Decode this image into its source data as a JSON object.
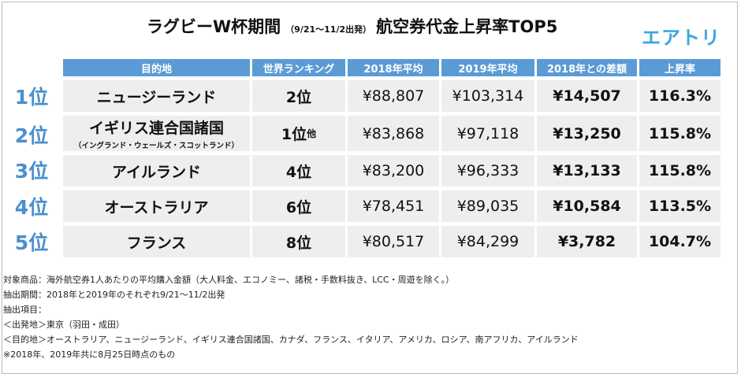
{
  "title": {
    "main": "ラグビーW杯期間",
    "period": "（9/21～11/2出発）",
    "rest": "航空券代金上昇率TOP5"
  },
  "logo": "エアトリ",
  "headers": [
    "目的地",
    "世界ランキング",
    "2018年平均",
    "2019年平均",
    "2018年との差額",
    "上昇率"
  ],
  "rows": [
    {
      "rank": "1位",
      "destination": "ニュージーランド",
      "sub": "",
      "world_rank": "2位",
      "world_rank_suffix": "",
      "avg2018": "¥88,807",
      "avg2019": "¥103,314",
      "diff": "¥14,507",
      "rate": "116.3%"
    },
    {
      "rank": "2位",
      "destination": "イギリス連合国諸国",
      "sub": "（イングランド・ウェールズ・スコットランド）",
      "world_rank": "1位",
      "world_rank_suffix": "他",
      "avg2018": "¥83,868",
      "avg2019": "¥97,118",
      "diff": "¥13,250",
      "rate": "115.8%"
    },
    {
      "rank": "3位",
      "destination": "アイルランド",
      "sub": "",
      "world_rank": "4位",
      "world_rank_suffix": "",
      "avg2018": "¥83,200",
      "avg2019": "¥96,333",
      "diff": "¥13,133",
      "rate": "115.8%"
    },
    {
      "rank": "4位",
      "destination": "オーストラリア",
      "sub": "",
      "world_rank": "6位",
      "world_rank_suffix": "",
      "avg2018": "¥78,451",
      "avg2019": "¥89,035",
      "diff": "¥10,584",
      "rate": "113.5%"
    },
    {
      "rank": "5位",
      "destination": "フランス",
      "sub": "",
      "world_rank": "8位",
      "world_rank_suffix": "",
      "avg2018": "¥80,517",
      "avg2019": "¥84,299",
      "diff": "¥3,782",
      "rate": "104.7%"
    }
  ],
  "notes": [
    "対象商品：海外航空券1人あたりの平均購入金額（大人料金、エコノミー、諸税・手数料抜き、LCC・周遊を除く。）",
    "抽出期間：2018年と2019年のそれぞれ9/21～11/2出発",
    "抽出項目：",
    "＜出発地＞東京（羽田・成田）",
    "＜目的地＞オーストラリア、ニュージーランド、イギリス連合国諸国、カナダ、フランス、イタリア、アメリカ、ロシア、南アフリカ、アイルランド",
    "※2018年、2019年共に8月25日時点のもの"
  ]
}
